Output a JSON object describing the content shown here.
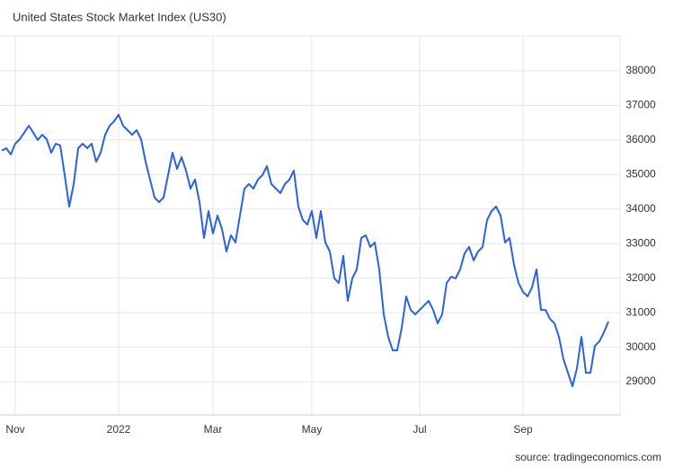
{
  "chart_data": {
    "type": "line",
    "title": "United States Stock Market Index (US30)",
    "source": "source: tradingeconomics.com",
    "categories": [
      null,
      null,
      null,
      "Nov",
      null,
      null,
      null,
      null,
      null,
      null,
      null,
      null,
      null,
      null,
      null,
      null,
      null,
      null,
      null,
      null,
      null,
      null,
      null,
      null,
      null,
      null,
      "2022",
      null,
      null,
      null,
      null,
      null,
      null,
      null,
      null,
      null,
      null,
      null,
      null,
      null,
      null,
      null,
      null,
      null,
      null,
      null,
      null,
      "Mar",
      null,
      null,
      null,
      null,
      null,
      null,
      null,
      null,
      null,
      null,
      null,
      null,
      null,
      null,
      null,
      null,
      null,
      null,
      null,
      null,
      null,
      "May",
      null,
      null,
      null,
      null,
      null,
      null,
      null,
      null,
      null,
      null,
      null,
      null,
      null,
      null,
      null,
      null,
      null,
      null,
      null,
      null,
      null,
      null,
      null,
      "Jul",
      null,
      null,
      null,
      null,
      null,
      null,
      null,
      null,
      null,
      null,
      null,
      null,
      null,
      null,
      null,
      null,
      null,
      null,
      null,
      null,
      null,
      null,
      "Sep",
      null,
      null,
      null,
      null,
      null,
      null,
      null,
      null,
      null,
      null,
      null,
      null,
      null,
      null,
      null,
      null,
      null,
      null,
      null
    ],
    "series": [
      {
        "name": "US30",
        "color": "#2a62e0",
        "values": [
          35690,
          35760,
          35580,
          35890,
          36020,
          36210,
          36410,
          36210,
          36000,
          36150,
          36020,
          35630,
          35890,
          35840,
          34980,
          34070,
          34720,
          35760,
          35890,
          35760,
          35890,
          35370,
          35630,
          36150,
          36410,
          36540,
          36730,
          36410,
          36280,
          36150,
          36280,
          36020,
          35370,
          34850,
          34330,
          34200,
          34330,
          34980,
          35630,
          35160,
          35500,
          35110,
          34590,
          34850,
          34200,
          33160,
          33940,
          33290,
          33810,
          33420,
          32770,
          33240,
          33030,
          33810,
          34590,
          34720,
          34590,
          34850,
          34980,
          35240,
          34720,
          34590,
          34460,
          34720,
          34850,
          35110,
          34070,
          33680,
          33550,
          33940,
          33160,
          33940,
          33030,
          32770,
          31990,
          31860,
          32640,
          31340,
          31990,
          32250,
          33160,
          33240,
          32900,
          33030,
          32250,
          30950,
          30300,
          29910,
          29910,
          30560,
          31470,
          31080,
          30950,
          31080,
          31210,
          31340,
          31080,
          30690,
          30950,
          31860,
          32040,
          31990,
          32250,
          32720,
          32900,
          32510,
          32770,
          32900,
          33680,
          33940,
          34070,
          33810,
          33030,
          33160,
          32380,
          31860,
          31600,
          31470,
          31730,
          32250,
          31080,
          31080,
          30820,
          30690,
          30300,
          29650,
          29260,
          28870,
          29390,
          30300,
          29260,
          29260,
          30040,
          30170,
          30430,
          30740
        ]
      }
    ],
    "ylim": [
      28040,
      39010
    ],
    "yticks": [
      29000,
      30000,
      31000,
      32000,
      33000,
      34000,
      35000,
      36000,
      37000,
      38000
    ],
    "grid": true
  }
}
